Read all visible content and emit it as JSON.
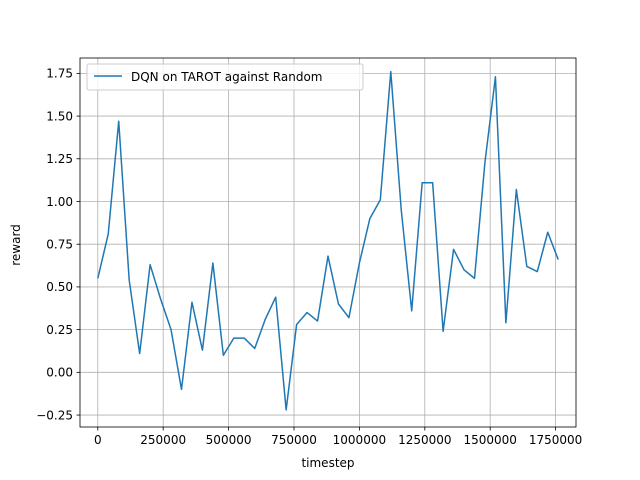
{
  "chart_data": {
    "type": "line",
    "xlabel": "timestep",
    "ylabel": "reward",
    "xlim": [
      -68000,
      1828000
    ],
    "ylim": [
      -0.32,
      1.84
    ],
    "grid": true,
    "legend_position": "top-left",
    "x_ticks": [
      0,
      250000,
      500000,
      750000,
      1000000,
      1250000,
      1500000,
      1750000
    ],
    "x_tick_labels": [
      "0",
      "250000",
      "500000",
      "750000",
      "1000000",
      "1250000",
      "1500000",
      "1750000"
    ],
    "y_ticks": [
      -0.25,
      0.0,
      0.25,
      0.5,
      0.75,
      1.0,
      1.25,
      1.5,
      1.75
    ],
    "y_tick_labels": [
      "−0.25",
      "0.00",
      "0.25",
      "0.50",
      "0.75",
      "1.00",
      "1.25",
      "1.50",
      "1.75"
    ],
    "series": [
      {
        "name": "DQN on TAROT against Random",
        "color": "#1f77b4",
        "x": [
          0,
          40000,
          80000,
          120000,
          160000,
          200000,
          240000,
          280000,
          320000,
          360000,
          400000,
          440000,
          480000,
          520000,
          560000,
          600000,
          640000,
          680000,
          720000,
          760000,
          800000,
          840000,
          880000,
          920000,
          960000,
          1000000,
          1040000,
          1080000,
          1120000,
          1160000,
          1200000,
          1240000,
          1280000,
          1320000,
          1360000,
          1400000,
          1440000,
          1480000,
          1520000,
          1560000,
          1600000,
          1640000,
          1680000,
          1720000,
          1760000
        ],
        "y": [
          0.55,
          0.81,
          1.47,
          0.54,
          0.11,
          0.63,
          0.43,
          0.25,
          -0.1,
          0.41,
          0.13,
          0.64,
          0.1,
          0.2,
          0.2,
          0.14,
          0.31,
          0.44,
          -0.22,
          0.28,
          0.35,
          0.3,
          0.68,
          0.4,
          0.32,
          0.64,
          0.9,
          1.01,
          1.76,
          0.95,
          0.36,
          1.11,
          1.11,
          0.24,
          0.72,
          0.6,
          0.55,
          1.23,
          1.73,
          0.29,
          1.07,
          0.62,
          0.59,
          0.82,
          0.66
        ]
      }
    ]
  }
}
